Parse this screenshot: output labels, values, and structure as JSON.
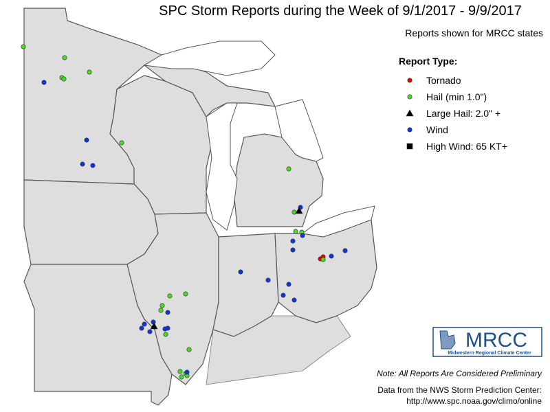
{
  "header": {
    "title": "SPC Storm Reports during the Week of 9/1/2017 - 9/9/2017",
    "subtitle": "Reports shown for MRCC states"
  },
  "legend": {
    "title": "Report Type:",
    "items": [
      {
        "label": "Tornado",
        "color": "#ee0000",
        "marker": "circle"
      },
      {
        "label": "Hail (min 1.0\")",
        "color": "#44dd22",
        "marker": "circle"
      },
      {
        "label": "Large Hail: 2.0\" +",
        "color": "#000000",
        "marker": "triangle"
      },
      {
        "label": "Wind",
        "color": "#1133dd",
        "marker": "circle"
      },
      {
        "label": "High Wind: 65 KT+",
        "color": "#000000",
        "marker": "square"
      }
    ]
  },
  "logo": {
    "text": "MRCC",
    "caption": "Midwestern Regional Climate Center"
  },
  "footer": {
    "note": "Note: All Reports Are Considered Preliminary",
    "source": "Data from the NWS Storm Prediction Center:",
    "url": "http://www.spc.noaa.gov/climo/online"
  }
}
